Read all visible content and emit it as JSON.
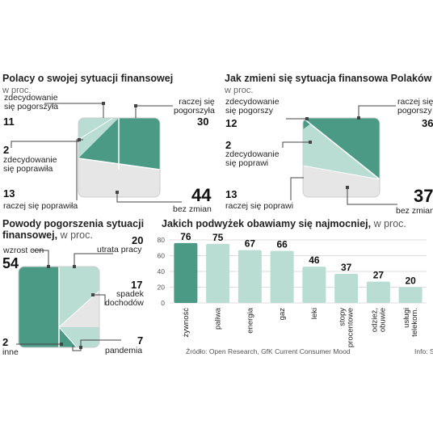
{
  "colors": {
    "green": "#4a9a86",
    "light": "#b9ddd3",
    "grey": "#e6e6e6",
    "dark": "#444444"
  },
  "panel1": {
    "title": "Polacy o swojej sytuacji finansowej",
    "unit": "w proc.",
    "labels": {
      "worse_strong": "zdecydowanie\nsię pogorszyła",
      "worse": "raczej się\npogorszyła",
      "better_strong": "zdecydowanie\nsię poprawiła",
      "better": "raczej się poprawiła",
      "none": "bez zmian"
    },
    "values": {
      "worse_strong": "11",
      "worse": "30",
      "better_strong": "2",
      "better": "13",
      "none": "44"
    }
  },
  "panel2": {
    "title": "Jak zmieni się sytuacja finansowa Polaków",
    "unit": "w proc.",
    "labels": {
      "worse_strong": "zdecydowanie\nsię pogorszy",
      "worse": "raczej się\npogorszy",
      "better_strong": "zdecydowanie\nsię poprawi",
      "better": "raczej się poprawi",
      "none": "bez zmian"
    },
    "values": {
      "worse_strong": "12",
      "worse": "36",
      "better_strong": "2",
      "better": "13",
      "none": "37"
    }
  },
  "panel3": {
    "title_line1": "Powody pogorszenia sytuacji",
    "title_line2": "finansowej,",
    "unit": "w proc.",
    "labels": {
      "prices": "wzrost cen",
      "job": "utrata pracy",
      "income": "spadek\ndochodów",
      "pandemic": "pandemia",
      "other": "inne"
    },
    "values": {
      "prices": "54",
      "job": "20",
      "income": "17",
      "pandemic": "7",
      "other": "2"
    }
  },
  "panel4": {
    "title": "Jakich podwyżek obawiamy się najmocniej,",
    "unit": "w proc."
  },
  "chart_data": {
    "type": "bar",
    "categories": [
      "żywność",
      "paliwa",
      "energia",
      "gaz",
      "leki",
      "stopy\nprocentowe",
      "odzież,\nobuwie",
      "usługi\ntelekom."
    ],
    "values": [
      76,
      75,
      67,
      66,
      46,
      37,
      27,
      20
    ],
    "yticks": [
      0,
      20,
      40,
      60,
      80
    ],
    "ylim": [
      0,
      80
    ],
    "highlight_index": 0
  },
  "footer": {
    "source": "Źródło: Open Research, GfK Current Consumer Mood",
    "info": "Info: S"
  }
}
